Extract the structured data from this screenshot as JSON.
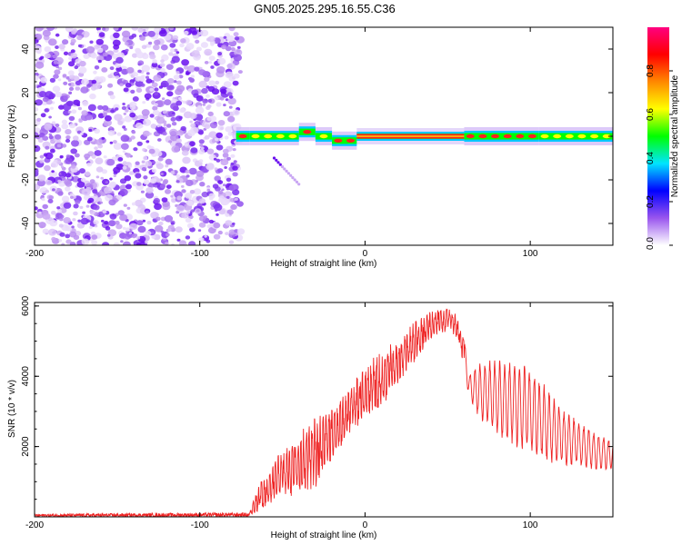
{
  "figure_title": "GN05.2025.295.16.55.C36",
  "chart_data": [
    {
      "type": "heatmap",
      "title": "GN05.2025.295.16.55.C36",
      "xlabel": "Height of straight line (km)",
      "ylabel": "Frequency (Hz)",
      "xlim": [
        -200,
        150
      ],
      "ylim": [
        -50,
        50
      ],
      "x_ticks": [
        -200,
        -100,
        0,
        100
      ],
      "y_ticks": [
        -40,
        -20,
        0,
        20,
        40
      ],
      "noise_region_x": [
        -200,
        -75
      ],
      "signal_band": [
        {
          "x": [
            -78,
            -70
          ],
          "center_hz": 0,
          "level": "high"
        },
        {
          "x": [
            -70,
            -40
          ],
          "center_hz": 0,
          "level": "medium"
        },
        {
          "x": [
            -40,
            -30
          ],
          "center_hz": 2,
          "level": "high"
        },
        {
          "x": [
            -30,
            -20
          ],
          "center_hz": 0,
          "level": "medium"
        },
        {
          "x": [
            -20,
            -5
          ],
          "center_hz": -2,
          "level": "high"
        },
        {
          "x": [
            -5,
            60
          ],
          "center_hz": 0,
          "level": "max"
        },
        {
          "x": [
            60,
            105
          ],
          "center_hz": 0,
          "level": "high"
        },
        {
          "x": [
            105,
            150
          ],
          "center_hz": 0,
          "level": "medium"
        }
      ],
      "side_trace": {
        "x": [
          -55,
          -40
        ],
        "hz": [
          -10,
          -22
        ]
      },
      "colorbar": {
        "label": "Normalized spectral amplitude",
        "range": [
          0,
          1
        ],
        "ticks": [
          0.0,
          0.2,
          0.4,
          0.6,
          0.8
        ],
        "tick_labels": [
          "0.0",
          "0.2",
          "0.4",
          "0.6",
          "0.8"
        ],
        "colors": [
          "#ffffff",
          "#9955ee",
          "#0000ff",
          "#00e5ff",
          "#00ff00",
          "#ffff00",
          "#ff8800",
          "#ff0000",
          "#ff0080"
        ]
      }
    },
    {
      "type": "line",
      "xlabel": "Height of straight line (km)",
      "ylabel": "SNR (10 * v/v)",
      "xlim": [
        -200,
        150
      ],
      "ylim": [
        0,
        6100
      ],
      "x_ticks": [
        -200,
        -100,
        0,
        100
      ],
      "y_ticks": [
        2000,
        4000,
        6000
      ],
      "color": "#ee2222",
      "series": [
        {
          "name": "SNR",
          "envelope": [
            {
              "x": -200,
              "low": 0,
              "high": 80
            },
            {
              "x": -70,
              "low": 0,
              "high": 120
            },
            {
              "x": -65,
              "low": 50,
              "high": 900
            },
            {
              "x": -60,
              "low": 300,
              "high": 1200
            },
            {
              "x": -50,
              "low": 500,
              "high": 2000
            },
            {
              "x": -40,
              "low": 600,
              "high": 2400
            },
            {
              "x": -30,
              "low": 800,
              "high": 2900
            },
            {
              "x": -20,
              "low": 1400,
              "high": 3200
            },
            {
              "x": -10,
              "low": 2300,
              "high": 3700
            },
            {
              "x": 0,
              "low": 2800,
              "high": 4300
            },
            {
              "x": 10,
              "low": 3100,
              "high": 4800
            },
            {
              "x": 20,
              "low": 3800,
              "high": 5000
            },
            {
              "x": 30,
              "low": 4400,
              "high": 5600
            },
            {
              "x": 40,
              "low": 5000,
              "high": 5900
            },
            {
              "x": 50,
              "low": 5300,
              "high": 6000
            },
            {
              "x": 55,
              "low": 5100,
              "high": 5800
            },
            {
              "x": 60,
              "low": 4300,
              "high": 5100
            },
            {
              "x": 63,
              "low": 3300,
              "high": 4100
            },
            {
              "x": 70,
              "low": 2700,
              "high": 4400
            },
            {
              "x": 80,
              "low": 2300,
              "high": 4500
            },
            {
              "x": 90,
              "low": 2000,
              "high": 4500
            },
            {
              "x": 100,
              "low": 1700,
              "high": 4300
            },
            {
              "x": 110,
              "low": 1500,
              "high": 3700
            },
            {
              "x": 120,
              "low": 1400,
              "high": 3100
            },
            {
              "x": 130,
              "low": 1400,
              "high": 2700
            },
            {
              "x": 140,
              "low": 1300,
              "high": 2400
            },
            {
              "x": 150,
              "low": 1300,
              "high": 2200
            }
          ]
        }
      ]
    }
  ]
}
